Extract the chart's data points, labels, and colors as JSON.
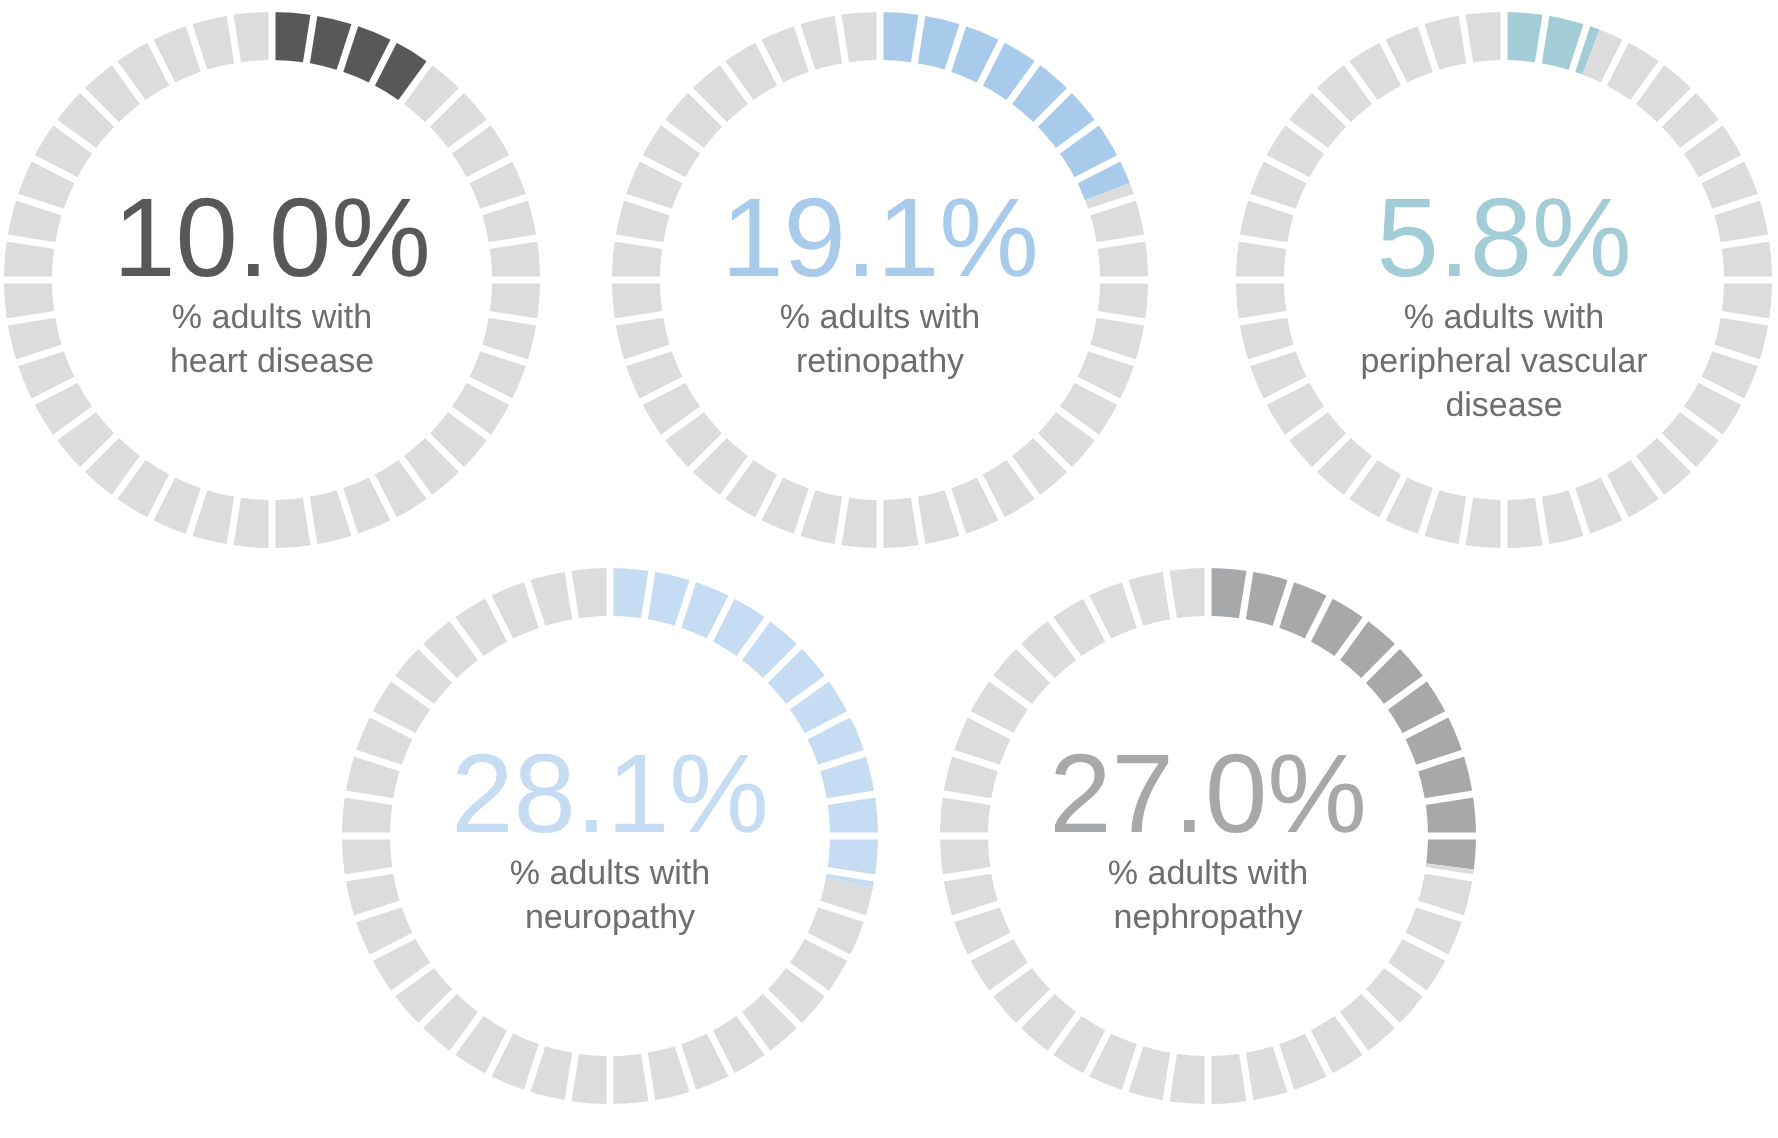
{
  "chart_data": [
    {
      "type": "donut",
      "title": "% adults with\nheart disease",
      "categories": [
        null,
        null
      ],
      "values": [
        10.0,
        90.0
      ],
      "colors": [
        "#58585a",
        "#dcdcdd"
      ],
      "annotations": [
        "10.0%"
      ]
    },
    {
      "type": "donut",
      "title": "% adults with\nretinopathy",
      "categories": [
        null,
        null
      ],
      "values": [
        19.1,
        80.9
      ],
      "colors": [
        "#a9cbeb",
        "#dcdcdd"
      ],
      "annotations": [
        "19.1%"
      ]
    },
    {
      "type": "donut",
      "title": "% adults with\nperipheral vascular\ndisease",
      "categories": [
        null,
        null
      ],
      "values": [
        5.8,
        94.2
      ],
      "colors": [
        "#a3cdd6",
        "#dcdcdd"
      ],
      "annotations": [
        "5.8%"
      ]
    },
    {
      "type": "donut",
      "title": "% adults with\nneuropathy",
      "categories": [
        null,
        null
      ],
      "values": [
        28.1,
        71.9
      ],
      "colors": [
        "#c5dcf3",
        "#dcdcdd"
      ],
      "annotations": [
        "28.1%"
      ]
    },
    {
      "type": "donut",
      "title": "% adults with\nnephropathy",
      "categories": [
        null,
        null
      ],
      "values": [
        27.0,
        73.0
      ],
      "colors": [
        "#a7a8aa",
        "#dcdcdd"
      ],
      "annotations": [
        "27.0%"
      ]
    }
  ]
}
